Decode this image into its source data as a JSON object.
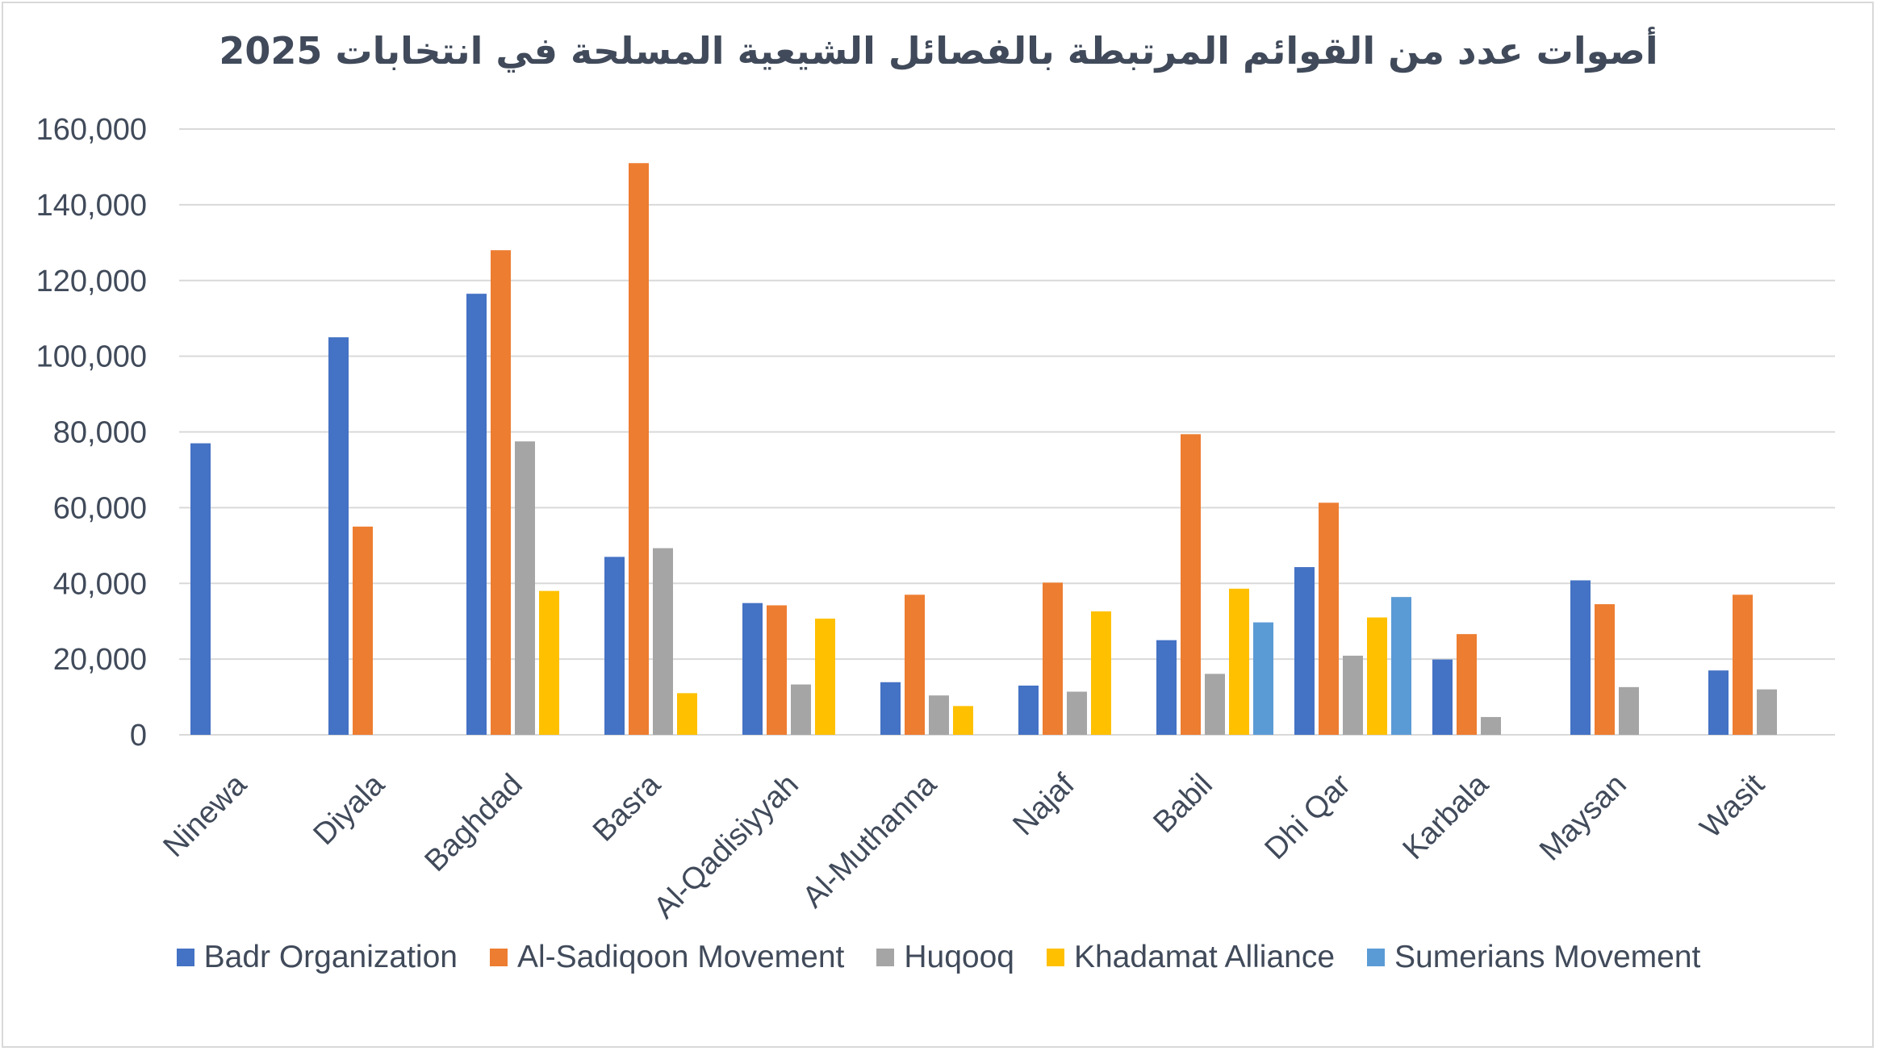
{
  "chart_data": {
    "type": "bar",
    "title": "أصوات عدد من القوائم المرتبطة بالفصائل الشيعية المسلحة في انتخابات 2025",
    "xlabel": "",
    "ylabel": "",
    "ylim": [
      0,
      160000
    ],
    "yticks": [
      "0",
      "20,000",
      "40,000",
      "60,000",
      "80,000",
      "100,000",
      "120,000",
      "140,000",
      "160,000"
    ],
    "grid": true,
    "legend_position": "bottom",
    "categories": [
      "Ninewa",
      "Diyala",
      "Baghdad",
      "Basra",
      "Al-Qadisiyyah",
      "Al-Muthanna",
      "Najaf",
      "Babil",
      "Dhi Qar",
      "Karbala",
      "Maysan",
      "Wasit"
    ],
    "series": [
      {
        "name": "Badr Organization",
        "color": "#4472c4",
        "values": [
          77000,
          105000,
          116500,
          47000,
          34800,
          13900,
          13000,
          25000,
          44300,
          19900,
          40800,
          17000
        ]
      },
      {
        "name": "Al-Sadiqoon Movement",
        "color": "#ed7d31",
        "values": [
          null,
          55000,
          128000,
          151000,
          34200,
          37000,
          40200,
          79400,
          61300,
          26600,
          34500,
          37000
        ]
      },
      {
        "name": "Huqooq",
        "color": "#a5a5a5",
        "values": [
          null,
          null,
          77500,
          49300,
          13300,
          10400,
          11400,
          16100,
          20900,
          4700,
          12600,
          12000
        ]
      },
      {
        "name": "Khadamat Alliance",
        "color": "#ffc000",
        "values": [
          null,
          null,
          38000,
          11000,
          30700,
          7600,
          32600,
          38600,
          31000,
          null,
          null,
          null
        ]
      },
      {
        "name": "Sumerians Movement",
        "color": "#5b9bd5",
        "values": [
          null,
          null,
          null,
          null,
          null,
          null,
          null,
          29700,
          36400,
          null,
          null,
          null
        ]
      }
    ]
  }
}
